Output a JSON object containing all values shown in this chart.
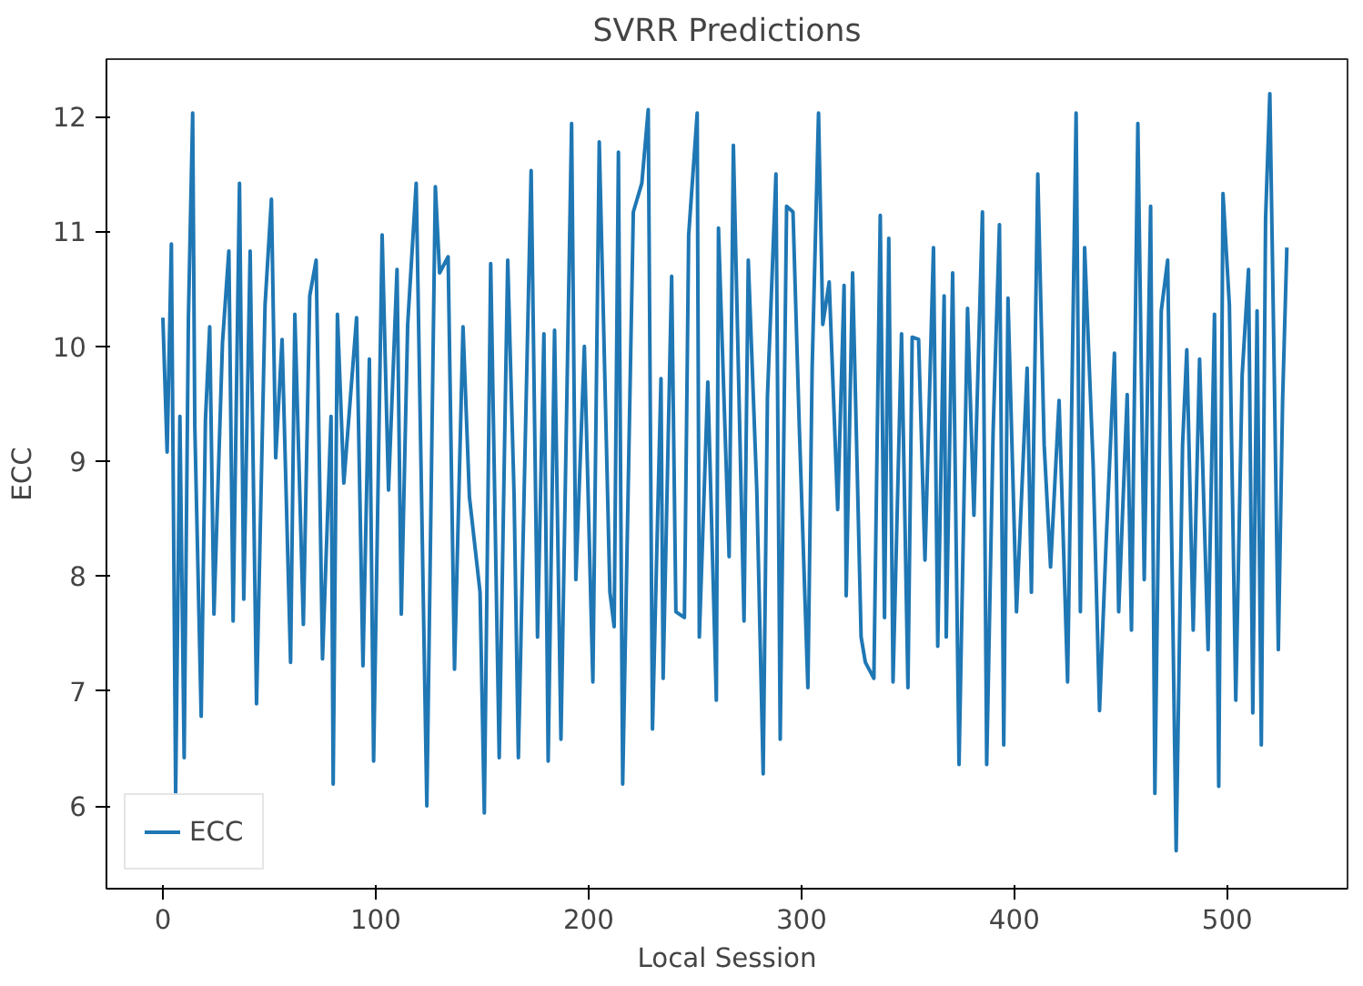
{
  "chart_data": {
    "type": "line",
    "title": "SVRR Predictions",
    "xlabel": "Local Session",
    "ylabel": "ECC",
    "xlim": [
      -26.5,
      556.5
    ],
    "ylim": [
      5.28,
      12.5
    ],
    "xticks": [
      0,
      100,
      200,
      300,
      400,
      500
    ],
    "yticks": [
      6,
      7,
      8,
      9,
      10,
      11,
      12
    ],
    "grid": false,
    "legend": "bottom left",
    "line_style": "solid",
    "marker": "none",
    "series": [
      {
        "name": "ECC",
        "color": "#1f77b4",
        "x": [
          0,
          2,
          4,
          6,
          8,
          10,
          12,
          14,
          15,
          18,
          20,
          22,
          24,
          28,
          31,
          33,
          36,
          38,
          41,
          44,
          48,
          51,
          53,
          56,
          60,
          62,
          66,
          69,
          72,
          75,
          79,
          80,
          82,
          85,
          91,
          94,
          97,
          99,
          103,
          106,
          110,
          112,
          115,
          119,
          121,
          124,
          128,
          130,
          134,
          137,
          141,
          144,
          149,
          151,
          154,
          158,
          162,
          165,
          167,
          173,
          176,
          179,
          181,
          184,
          187,
          192,
          194,
          198,
          202,
          205,
          210,
          212,
          214,
          216,
          221,
          225,
          228,
          230,
          234,
          235,
          239,
          241,
          245,
          247,
          251,
          252,
          256,
          260,
          261,
          266,
          268,
          273,
          275,
          279,
          282,
          284,
          288,
          290,
          293,
          296,
          299,
          303,
          305,
          308,
          310,
          313,
          317,
          320,
          321,
          324,
          328,
          330,
          334,
          337,
          339,
          341,
          343,
          347,
          350,
          352,
          355,
          358,
          362,
          364,
          367,
          368,
          371,
          374,
          378,
          381,
          385,
          387,
          390,
          393,
          395,
          397,
          401,
          406,
          408,
          411,
          414,
          417,
          421,
          425,
          429,
          431,
          433,
          437,
          440,
          443,
          447,
          449,
          453,
          455,
          458,
          461,
          464,
          466,
          469,
          472,
          476,
          479,
          481,
          484,
          487,
          491,
          494,
          496,
          498,
          501,
          504,
          507,
          510,
          512,
          514,
          516,
          518,
          520,
          522,
          524,
          526,
          528
        ],
        "values": [
          10.25,
          9.08,
          10.89,
          6.11,
          9.39,
          6.42,
          10.25,
          12.03,
          9.31,
          6.78,
          9.36,
          10.17,
          7.67,
          10.03,
          10.83,
          7.61,
          11.42,
          7.8,
          10.83,
          6.89,
          10.36,
          11.28,
          9.03,
          10.06,
          7.25,
          10.28,
          7.58,
          10.44,
          10.75,
          7.28,
          9.39,
          6.19,
          10.28,
          8.81,
          10.25,
          7.22,
          9.89,
          6.39,
          10.97,
          8.75,
          10.67,
          7.67,
          10.19,
          11.42,
          9.25,
          6.0,
          11.39,
          10.64,
          10.78,
          7.19,
          10.17,
          8.69,
          7.86,
          5.94,
          10.72,
          6.42,
          10.75,
          8.69,
          6.42,
          11.53,
          7.47,
          10.11,
          6.39,
          10.14,
          6.58,
          11.94,
          7.97,
          10.0,
          7.08,
          11.78,
          7.86,
          7.56,
          11.69,
          6.19,
          11.17,
          11.42,
          12.06,
          6.67,
          9.72,
          7.11,
          10.61,
          7.69,
          7.64,
          10.97,
          12.03,
          7.47,
          9.69,
          6.92,
          11.03,
          8.17,
          11.75,
          7.61,
          10.75,
          8.75,
          6.28,
          9.56,
          11.5,
          6.58,
          11.22,
          11.17,
          9.28,
          7.03,
          9.81,
          12.03,
          10.19,
          10.56,
          8.58,
          10.53,
          7.83,
          10.64,
          7.47,
          7.25,
          7.11,
          11.14,
          7.64,
          10.94,
          7.08,
          10.11,
          7.03,
          10.08,
          10.06,
          8.14,
          10.86,
          7.39,
          10.44,
          7.47,
          10.64,
          6.36,
          10.33,
          8.53,
          11.17,
          6.36,
          9.25,
          11.06,
          6.53,
          10.42,
          7.69,
          9.81,
          7.86,
          11.5,
          9.14,
          8.08,
          9.53,
          7.08,
          12.03,
          7.69,
          10.86,
          8.97,
          6.83,
          8.25,
          9.94,
          7.69,
          9.58,
          7.53,
          11.94,
          7.97,
          11.22,
          6.11,
          10.31,
          10.75,
          5.61,
          9.14,
          9.97,
          7.53,
          9.89,
          7.36,
          10.28,
          6.17,
          11.33,
          10.36,
          6.92,
          9.75,
          10.67,
          6.81,
          10.31,
          6.53,
          11.11,
          12.2,
          9.86,
          7.36,
          9.53,
          10.86
        ]
      }
    ]
  }
}
